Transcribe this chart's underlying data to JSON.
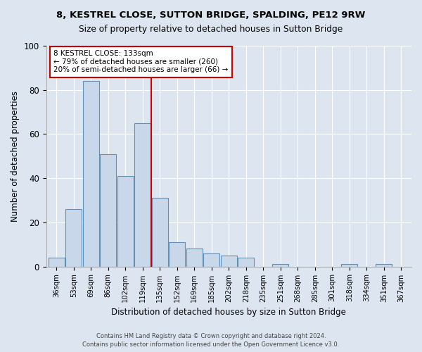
{
  "title1": "8, KESTREL CLOSE, SUTTON BRIDGE, SPALDING, PE12 9RW",
  "title2": "Size of property relative to detached houses in Sutton Bridge",
  "xlabel": "Distribution of detached houses by size in Sutton Bridge",
  "ylabel": "Number of detached properties",
  "footer1": "Contains HM Land Registry data © Crown copyright and database right 2024.",
  "footer2": "Contains public sector information licensed under the Open Government Licence v3.0.",
  "categories": [
    "36sqm",
    "53sqm",
    "69sqm",
    "86sqm",
    "102sqm",
    "119sqm",
    "135sqm",
    "152sqm",
    "169sqm",
    "185sqm",
    "202sqm",
    "218sqm",
    "235sqm",
    "251sqm",
    "268sqm",
    "285sqm",
    "301sqm",
    "318sqm",
    "334sqm",
    "351sqm",
    "367sqm"
  ],
  "values": [
    4,
    26,
    84,
    51,
    41,
    65,
    31,
    11,
    8,
    6,
    5,
    4,
    0,
    1,
    0,
    0,
    0,
    1,
    0,
    1,
    0
  ],
  "bar_color": "#c8d8ea",
  "bar_edge_color": "#6090b8",
  "vline_x": 5.5,
  "vline_color": "#cc0000",
  "annotation_text": "8 KESTREL CLOSE: 133sqm\n← 79% of detached houses are smaller (260)\n20% of semi-detached houses are larger (66) →",
  "annotation_box_color": "#ffffff",
  "annotation_box_edge_color": "#cc0000",
  "ylim": [
    0,
    100
  ],
  "yticks": [
    0,
    20,
    40,
    60,
    80,
    100
  ],
  "background_color": "#dde6f0",
  "plot_bg_color": "#dde6f0",
  "grid_color": "#ffffff",
  "title_fontsize": 9.5,
  "subtitle_fontsize": 9.0
}
